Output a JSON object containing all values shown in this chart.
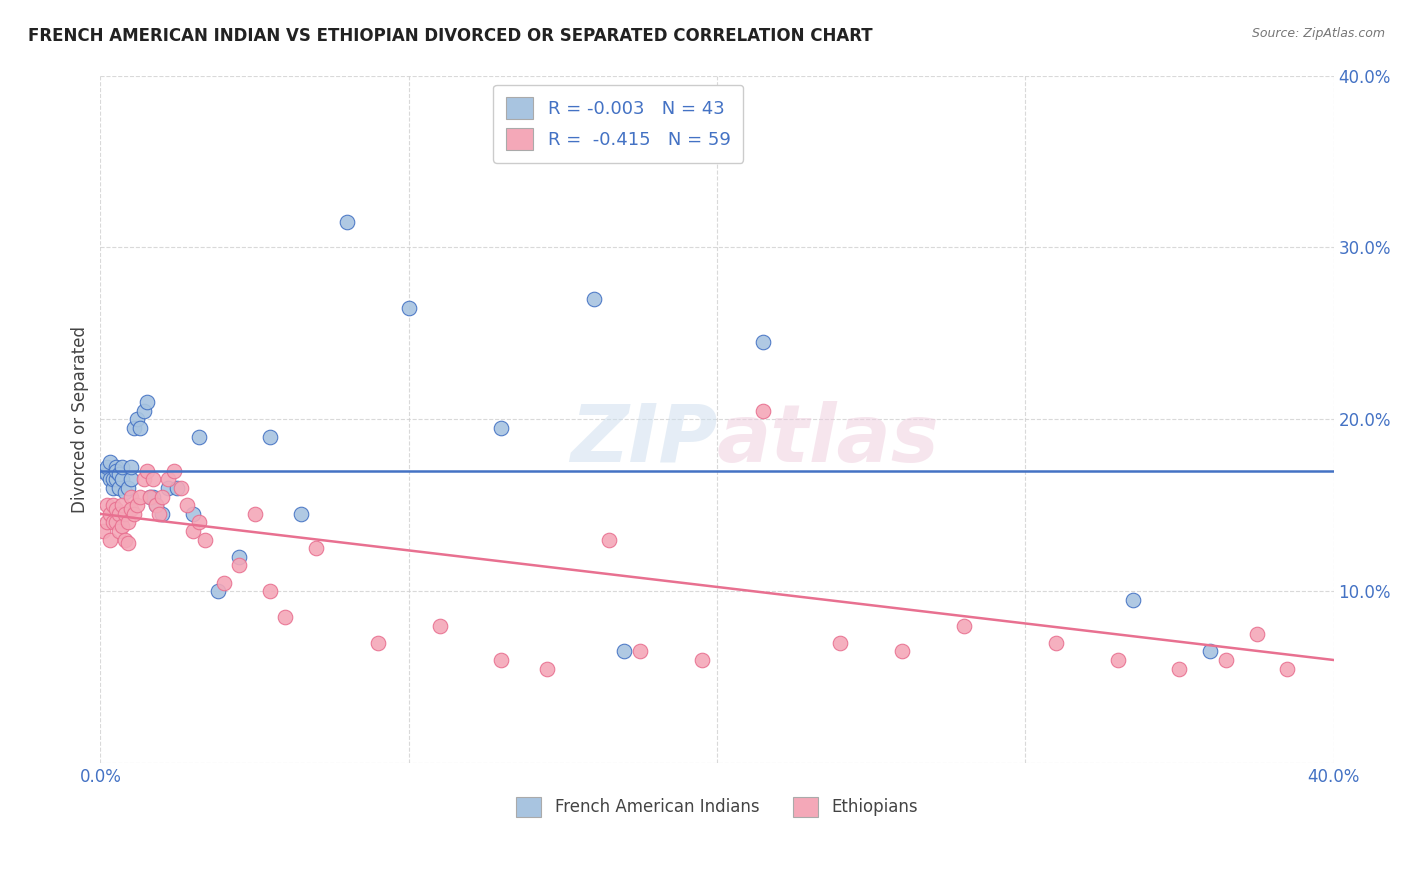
{
  "title": "FRENCH AMERICAN INDIAN VS ETHIOPIAN DIVORCED OR SEPARATED CORRELATION CHART",
  "source": "Source: ZipAtlas.com",
  "ylabel": "Divorced or Separated",
  "watermark": "ZIPatlas",
  "blue_color": "#a8c4e0",
  "pink_color": "#f4a8b8",
  "blue_line_color": "#4472c4",
  "pink_line_color": "#e87090",
  "legend_label_blue": "French American Indians",
  "legend_label_pink": "Ethiopians",
  "xlim": [
    0.0,
    0.4
  ],
  "ylim": [
    0.0,
    0.4
  ],
  "yticks_right": [
    0.1,
    0.2,
    0.3,
    0.4
  ],
  "xticks": [
    0.0,
    0.4
  ],
  "blue_x": [
    0.001,
    0.002,
    0.002,
    0.003,
    0.003,
    0.004,
    0.004,
    0.005,
    0.005,
    0.005,
    0.006,
    0.006,
    0.007,
    0.007,
    0.008,
    0.009,
    0.01,
    0.01,
    0.011,
    0.012,
    0.013,
    0.014,
    0.015,
    0.016,
    0.017,
    0.018,
    0.02,
    0.022,
    0.025,
    0.03,
    0.032,
    0.038,
    0.045,
    0.055,
    0.065,
    0.08,
    0.1,
    0.13,
    0.16,
    0.17,
    0.215,
    0.335,
    0.36
  ],
  "blue_y": [
    0.17,
    0.168,
    0.172,
    0.165,
    0.175,
    0.16,
    0.165,
    0.172,
    0.165,
    0.17,
    0.168,
    0.16,
    0.165,
    0.172,
    0.158,
    0.16,
    0.165,
    0.172,
    0.195,
    0.2,
    0.195,
    0.205,
    0.21,
    0.155,
    0.155,
    0.15,
    0.145,
    0.16,
    0.16,
    0.145,
    0.19,
    0.1,
    0.12,
    0.19,
    0.145,
    0.315,
    0.265,
    0.195,
    0.27,
    0.065,
    0.245,
    0.095,
    0.065
  ],
  "pink_x": [
    0.001,
    0.002,
    0.002,
    0.003,
    0.003,
    0.004,
    0.004,
    0.005,
    0.005,
    0.006,
    0.006,
    0.007,
    0.007,
    0.008,
    0.008,
    0.009,
    0.009,
    0.01,
    0.01,
    0.011,
    0.012,
    0.013,
    0.014,
    0.015,
    0.016,
    0.017,
    0.018,
    0.019,
    0.02,
    0.022,
    0.024,
    0.026,
    0.028,
    0.03,
    0.032,
    0.034,
    0.04,
    0.045,
    0.05,
    0.055,
    0.06,
    0.07,
    0.09,
    0.11,
    0.13,
    0.145,
    0.165,
    0.175,
    0.195,
    0.215,
    0.24,
    0.26,
    0.28,
    0.31,
    0.33,
    0.35,
    0.365,
    0.375,
    0.385
  ],
  "pink_y": [
    0.135,
    0.15,
    0.14,
    0.145,
    0.13,
    0.15,
    0.14,
    0.148,
    0.14,
    0.145,
    0.135,
    0.15,
    0.138,
    0.145,
    0.13,
    0.14,
    0.128,
    0.155,
    0.148,
    0.145,
    0.15,
    0.155,
    0.165,
    0.17,
    0.155,
    0.165,
    0.15,
    0.145,
    0.155,
    0.165,
    0.17,
    0.16,
    0.15,
    0.135,
    0.14,
    0.13,
    0.105,
    0.115,
    0.145,
    0.1,
    0.085,
    0.125,
    0.07,
    0.08,
    0.06,
    0.055,
    0.13,
    0.065,
    0.06,
    0.205,
    0.07,
    0.065,
    0.08,
    0.07,
    0.06,
    0.055,
    0.06,
    0.075,
    0.055
  ],
  "background_color": "#ffffff",
  "grid_color": "#d0d0d0",
  "blue_trend_y0": 0.17,
  "blue_trend_y1": 0.17,
  "pink_trend_y0": 0.145,
  "pink_trend_y1": 0.06
}
